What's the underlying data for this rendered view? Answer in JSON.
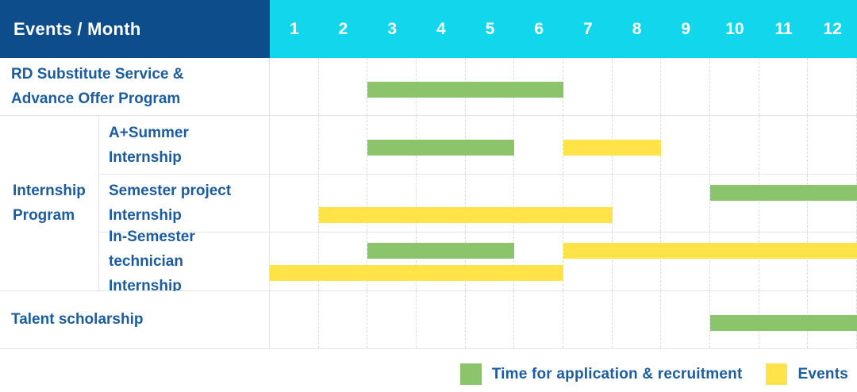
{
  "header": {
    "title": "Events / Month"
  },
  "colors": {
    "header_bg": "#0d4d8c",
    "month_header_bg": "#12d6ec",
    "label_text": "#1c5c9e",
    "bar_green": "#8bc46a",
    "bar_yellow": "#ffe348",
    "grid_line": "#e4e4e4",
    "month_grid_dash": "#dcdcdc"
  },
  "chart_data": {
    "type": "bar",
    "subtype": "gantt-timeline",
    "title": "Events / Month",
    "x_unit": "month",
    "x_range": [
      1,
      12
    ],
    "months": [
      "1",
      "2",
      "3",
      "4",
      "5",
      "6",
      "7",
      "8",
      "9",
      "10",
      "11",
      "12"
    ],
    "grid": "dashed-vertical-month-lines",
    "legend_position": "bottom-right",
    "legend": [
      {
        "color_key": "green",
        "label": "Time for application & recruitment"
      },
      {
        "color_key": "yellow",
        "label": "Events"
      }
    ],
    "group_label": "Internship Program",
    "rows": [
      {
        "label": "RD Substitute Service & Advance Offer Program",
        "group": null,
        "lanes": 1,
        "bars": [
          {
            "color": "green",
            "start_month": 3,
            "end_month": 6,
            "lane": 0
          }
        ]
      },
      {
        "label": "A+Summer Internship",
        "group": "Internship Program",
        "lanes": 1,
        "bars": [
          {
            "color": "green",
            "start_month": 3,
            "end_month": 5,
            "lane": 0
          },
          {
            "color": "yellow",
            "start_month": 7,
            "end_month": 8,
            "lane": 0
          }
        ]
      },
      {
        "label": "Semester project Internship",
        "group": "Internship Program",
        "lanes": 2,
        "bars": [
          {
            "color": "green",
            "start_month": 10,
            "end_month": 12,
            "lane": 0
          },
          {
            "color": "yellow",
            "start_month": 2,
            "end_month": 7,
            "lane": 1
          }
        ]
      },
      {
        "label": "In-Semester technician Internship",
        "group": "Internship Program",
        "lanes": 2,
        "bars": [
          {
            "color": "green",
            "start_month": 3,
            "end_month": 5,
            "lane": 0
          },
          {
            "color": "yellow",
            "start_month": 7,
            "end_month": 12,
            "lane": 0
          },
          {
            "color": "yellow",
            "start_month": 1,
            "end_month": 6,
            "lane": 1
          }
        ]
      },
      {
        "label": "Talent scholarship",
        "group": null,
        "lanes": 1,
        "bars": [
          {
            "color": "green",
            "start_month": 10,
            "end_month": 12,
            "lane": 0
          }
        ]
      }
    ]
  }
}
